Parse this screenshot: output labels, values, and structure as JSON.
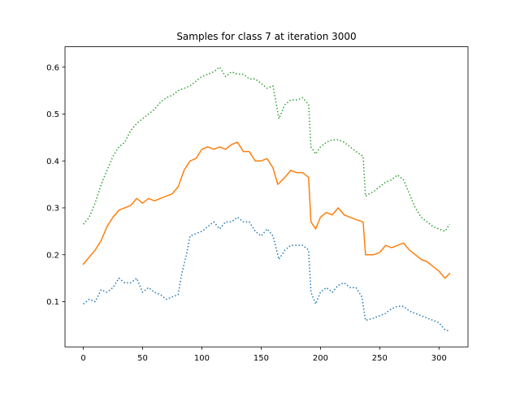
{
  "chart_data": {
    "type": "line",
    "title": "Samples for class 7 at iteration 3000",
    "xlabel": "",
    "ylabel": "",
    "xlim": [
      -15.45,
      324.45
    ],
    "ylim": [
      0.0035,
      0.6435
    ],
    "xticks": [
      0,
      50,
      100,
      150,
      200,
      250,
      300
    ],
    "yticks": [
      0.1,
      0.2,
      0.3,
      0.4,
      0.5,
      0.6
    ],
    "grid": false,
    "legend": "none",
    "series": [
      {
        "color": "#1f77b4",
        "linestyle": "dotted",
        "keypoints": [
          [
            0,
            0.095
          ],
          [
            5,
            0.105
          ],
          [
            10,
            0.1
          ],
          [
            15,
            0.125
          ],
          [
            20,
            0.12
          ],
          [
            25,
            0.13
          ],
          [
            30,
            0.15
          ],
          [
            35,
            0.14
          ],
          [
            40,
            0.14
          ],
          [
            45,
            0.15
          ],
          [
            50,
            0.12
          ],
          [
            55,
            0.13
          ],
          [
            60,
            0.12
          ],
          [
            65,
            0.115
          ],
          [
            70,
            0.105
          ],
          [
            75,
            0.11
          ],
          [
            80,
            0.115
          ],
          [
            83,
            0.16
          ],
          [
            87,
            0.2
          ],
          [
            90,
            0.24
          ],
          [
            95,
            0.245
          ],
          [
            100,
            0.25
          ],
          [
            105,
            0.26
          ],
          [
            110,
            0.27
          ],
          [
            115,
            0.255
          ],
          [
            120,
            0.27
          ],
          [
            125,
            0.27
          ],
          [
            130,
            0.28
          ],
          [
            135,
            0.27
          ],
          [
            140,
            0.27
          ],
          [
            145,
            0.25
          ],
          [
            150,
            0.24
          ],
          [
            155,
            0.255
          ],
          [
            160,
            0.24
          ],
          [
            165,
            0.19
          ],
          [
            170,
            0.21
          ],
          [
            175,
            0.22
          ],
          [
            180,
            0.22
          ],
          [
            185,
            0.22
          ],
          [
            190,
            0.21
          ],
          [
            192,
            0.12
          ],
          [
            196,
            0.095
          ],
          [
            200,
            0.12
          ],
          [
            205,
            0.13
          ],
          [
            210,
            0.12
          ],
          [
            215,
            0.135
          ],
          [
            220,
            0.14
          ],
          [
            225,
            0.13
          ],
          [
            230,
            0.13
          ],
          [
            235,
            0.11
          ],
          [
            238,
            0.06
          ],
          [
            245,
            0.065
          ],
          [
            250,
            0.07
          ],
          [
            255,
            0.075
          ],
          [
            260,
            0.085
          ],
          [
            265,
            0.09
          ],
          [
            270,
            0.09
          ],
          [
            275,
            0.08
          ],
          [
            280,
            0.075
          ],
          [
            285,
            0.07
          ],
          [
            290,
            0.065
          ],
          [
            295,
            0.06
          ],
          [
            300,
            0.055
          ],
          [
            305,
            0.04
          ],
          [
            309,
            0.037
          ]
        ]
      },
      {
        "color": "#ff7f0e",
        "linestyle": "solid",
        "keypoints": [
          [
            0,
            0.18
          ],
          [
            5,
            0.195
          ],
          [
            10,
            0.21
          ],
          [
            15,
            0.23
          ],
          [
            20,
            0.26
          ],
          [
            25,
            0.28
          ],
          [
            30,
            0.295
          ],
          [
            35,
            0.3
          ],
          [
            40,
            0.305
          ],
          [
            45,
            0.32
          ],
          [
            50,
            0.31
          ],
          [
            55,
            0.32
          ],
          [
            60,
            0.315
          ],
          [
            65,
            0.32
          ],
          [
            70,
            0.325
          ],
          [
            75,
            0.33
          ],
          [
            80,
            0.345
          ],
          [
            85,
            0.38
          ],
          [
            90,
            0.4
          ],
          [
            95,
            0.405
          ],
          [
            100,
            0.425
          ],
          [
            105,
            0.43
          ],
          [
            110,
            0.425
          ],
          [
            115,
            0.43
          ],
          [
            120,
            0.425
          ],
          [
            125,
            0.435
          ],
          [
            130,
            0.44
          ],
          [
            135,
            0.42
          ],
          [
            140,
            0.42
          ],
          [
            145,
            0.4
          ],
          [
            150,
            0.4
          ],
          [
            155,
            0.405
          ],
          [
            160,
            0.385
          ],
          [
            164,
            0.35
          ],
          [
            170,
            0.365
          ],
          [
            175,
            0.38
          ],
          [
            180,
            0.375
          ],
          [
            185,
            0.375
          ],
          [
            190,
            0.365
          ],
          [
            192,
            0.27
          ],
          [
            196,
            0.255
          ],
          [
            200,
            0.28
          ],
          [
            205,
            0.29
          ],
          [
            210,
            0.285
          ],
          [
            215,
            0.3
          ],
          [
            220,
            0.285
          ],
          [
            225,
            0.28
          ],
          [
            230,
            0.275
          ],
          [
            236,
            0.27
          ],
          [
            238,
            0.2
          ],
          [
            245,
            0.2
          ],
          [
            250,
            0.205
          ],
          [
            255,
            0.22
          ],
          [
            260,
            0.215
          ],
          [
            265,
            0.22
          ],
          [
            270,
            0.225
          ],
          [
            275,
            0.21
          ],
          [
            280,
            0.2
          ],
          [
            285,
            0.19
          ],
          [
            290,
            0.185
          ],
          [
            295,
            0.175
          ],
          [
            300,
            0.165
          ],
          [
            305,
            0.15
          ],
          [
            309,
            0.16
          ]
        ]
      },
      {
        "color": "#2ca02c",
        "linestyle": "dotted",
        "keypoints": [
          [
            0,
            0.265
          ],
          [
            5,
            0.28
          ],
          [
            10,
            0.31
          ],
          [
            15,
            0.35
          ],
          [
            20,
            0.38
          ],
          [
            25,
            0.41
          ],
          [
            30,
            0.43
          ],
          [
            35,
            0.44
          ],
          [
            40,
            0.465
          ],
          [
            45,
            0.48
          ],
          [
            50,
            0.49
          ],
          [
            55,
            0.5
          ],
          [
            60,
            0.51
          ],
          [
            65,
            0.525
          ],
          [
            70,
            0.535
          ],
          [
            75,
            0.54
          ],
          [
            80,
            0.55
          ],
          [
            85,
            0.555
          ],
          [
            90,
            0.56
          ],
          [
            95,
            0.57
          ],
          [
            100,
            0.58
          ],
          [
            105,
            0.585
          ],
          [
            110,
            0.59
          ],
          [
            115,
            0.6
          ],
          [
            120,
            0.58
          ],
          [
            125,
            0.59
          ],
          [
            130,
            0.585
          ],
          [
            135,
            0.585
          ],
          [
            140,
            0.575
          ],
          [
            145,
            0.575
          ],
          [
            150,
            0.565
          ],
          [
            155,
            0.555
          ],
          [
            160,
            0.56
          ],
          [
            165,
            0.49
          ],
          [
            170,
            0.52
          ],
          [
            175,
            0.53
          ],
          [
            180,
            0.53
          ],
          [
            185,
            0.535
          ],
          [
            190,
            0.52
          ],
          [
            192,
            0.43
          ],
          [
            196,
            0.415
          ],
          [
            200,
            0.43
          ],
          [
            205,
            0.44
          ],
          [
            210,
            0.445
          ],
          [
            215,
            0.445
          ],
          [
            220,
            0.44
          ],
          [
            225,
            0.43
          ],
          [
            230,
            0.42
          ],
          [
            236,
            0.41
          ],
          [
            238,
            0.325
          ],
          [
            245,
            0.335
          ],
          [
            250,
            0.345
          ],
          [
            255,
            0.355
          ],
          [
            260,
            0.36
          ],
          [
            265,
            0.37
          ],
          [
            270,
            0.36
          ],
          [
            275,
            0.33
          ],
          [
            280,
            0.3
          ],
          [
            285,
            0.28
          ],
          [
            290,
            0.27
          ],
          [
            295,
            0.26
          ],
          [
            300,
            0.255
          ],
          [
            305,
            0.25
          ],
          [
            309,
            0.265
          ]
        ]
      }
    ]
  }
}
